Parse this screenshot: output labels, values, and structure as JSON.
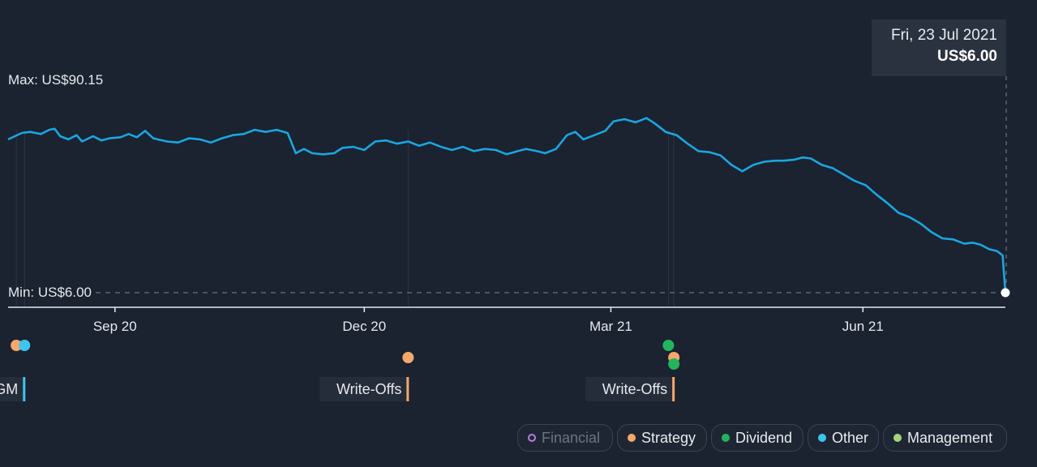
{
  "chart_data": {
    "type": "line",
    "currency": "US$",
    "max_label": "Max: US$90.15",
    "min_label": "Min: US$6.00",
    "y_max": 90.15,
    "y_min": 6.0,
    "x_start": "2020-07-24",
    "x_end": "2021-07-23",
    "x_ticks": [
      {
        "date": "2020-09-01",
        "label": "Sep 20"
      },
      {
        "date": "2020-12-01",
        "label": "Dec 20"
      },
      {
        "date": "2021-03-01",
        "label": "Mar 21"
      },
      {
        "date": "2021-06-01",
        "label": "Jun 21"
      }
    ],
    "series": [
      {
        "color": "#1aa6e0",
        "points": [
          [
            "2020-07-24",
            78.0
          ],
          [
            "2020-07-29",
            81.0
          ],
          [
            "2020-08-01",
            81.5
          ],
          [
            "2020-08-05",
            80.5
          ],
          [
            "2020-08-08",
            82.5
          ],
          [
            "2020-08-10",
            83.0
          ],
          [
            "2020-08-12",
            79.5
          ],
          [
            "2020-08-15",
            78.0
          ],
          [
            "2020-08-18",
            80.0
          ],
          [
            "2020-08-20",
            77.0
          ],
          [
            "2020-08-24",
            79.5
          ],
          [
            "2020-08-27",
            77.5
          ],
          [
            "2020-08-30",
            78.5
          ],
          [
            "2020-09-03",
            79.0
          ],
          [
            "2020-09-06",
            80.5
          ],
          [
            "2020-09-09",
            79.0
          ],
          [
            "2020-09-12",
            82.0
          ],
          [
            "2020-09-15",
            78.5
          ],
          [
            "2020-09-20",
            77.0
          ],
          [
            "2020-09-24",
            76.5
          ],
          [
            "2020-09-28",
            78.5
          ],
          [
            "2020-10-02",
            78.0
          ],
          [
            "2020-10-06",
            76.5
          ],
          [
            "2020-10-10",
            78.5
          ],
          [
            "2020-10-14",
            80.0
          ],
          [
            "2020-10-18",
            80.5
          ],
          [
            "2020-10-22",
            82.5
          ],
          [
            "2020-10-26",
            81.5
          ],
          [
            "2020-10-30",
            82.5
          ],
          [
            "2020-11-03",
            81.0
          ],
          [
            "2020-11-06",
            71.5
          ],
          [
            "2020-11-09",
            73.5
          ],
          [
            "2020-11-12",
            71.5
          ],
          [
            "2020-11-16",
            71.0
          ],
          [
            "2020-11-20",
            71.5
          ],
          [
            "2020-11-23",
            74.0
          ],
          [
            "2020-11-27",
            74.5
          ],
          [
            "2020-12-01",
            73.0
          ],
          [
            "2020-12-05",
            77.0
          ],
          [
            "2020-12-09",
            77.5
          ],
          [
            "2020-12-13",
            76.0
          ],
          [
            "2020-12-17",
            77.0
          ],
          [
            "2020-12-21",
            75.0
          ],
          [
            "2020-12-25",
            76.5
          ],
          [
            "2020-12-29",
            74.5
          ],
          [
            "2021-01-02",
            73.0
          ],
          [
            "2021-01-06",
            74.5
          ],
          [
            "2021-01-10",
            72.5
          ],
          [
            "2021-01-14",
            73.5
          ],
          [
            "2021-01-18",
            73.0
          ],
          [
            "2021-01-22",
            71.0
          ],
          [
            "2021-01-26",
            72.5
          ],
          [
            "2021-01-29",
            73.5
          ],
          [
            "2021-02-02",
            72.5
          ],
          [
            "2021-02-05",
            71.5
          ],
          [
            "2021-02-09",
            73.5
          ],
          [
            "2021-02-13",
            80.0
          ],
          [
            "2021-02-16",
            81.5
          ],
          [
            "2021-02-19",
            78.0
          ],
          [
            "2021-02-23",
            80.0
          ],
          [
            "2021-02-27",
            82.0
          ],
          [
            "2021-03-02",
            86.5
          ],
          [
            "2021-03-06",
            87.5
          ],
          [
            "2021-03-10",
            86.0
          ],
          [
            "2021-03-14",
            88.0
          ],
          [
            "2021-03-17",
            85.5
          ],
          [
            "2021-03-21",
            81.5
          ],
          [
            "2021-03-25",
            80.0
          ],
          [
            "2021-03-29",
            76.0
          ],
          [
            "2021-04-02",
            72.5
          ],
          [
            "2021-04-06",
            72.0
          ],
          [
            "2021-04-10",
            70.5
          ],
          [
            "2021-04-14",
            66.0
          ],
          [
            "2021-04-18",
            63.0
          ],
          [
            "2021-04-22",
            66.0
          ],
          [
            "2021-04-26",
            67.5
          ],
          [
            "2021-04-30",
            68.0
          ],
          [
            "2021-05-03",
            68.0
          ],
          [
            "2021-05-07",
            68.5
          ],
          [
            "2021-05-10",
            69.5
          ],
          [
            "2021-05-13",
            69.0
          ],
          [
            "2021-05-17",
            66.0
          ],
          [
            "2021-05-21",
            64.5
          ],
          [
            "2021-05-25",
            61.5
          ],
          [
            "2021-05-29",
            58.5
          ],
          [
            "2021-06-02",
            56.5
          ],
          [
            "2021-06-06",
            52.0
          ],
          [
            "2021-06-10",
            48.0
          ],
          [
            "2021-06-14",
            43.5
          ],
          [
            "2021-06-18",
            41.5
          ],
          [
            "2021-06-22",
            38.5
          ],
          [
            "2021-06-26",
            34.5
          ],
          [
            "2021-06-30",
            31.5
          ],
          [
            "2021-07-04",
            31.0
          ],
          [
            "2021-07-08",
            29.0
          ],
          [
            "2021-07-11",
            29.5
          ],
          [
            "2021-07-14",
            28.5
          ],
          [
            "2021-07-17",
            26.5
          ],
          [
            "2021-07-20",
            25.5
          ],
          [
            "2021-07-22",
            23.5
          ],
          [
            "2021-07-23",
            6.0
          ]
        ]
      }
    ],
    "current_point": {
      "date": "2021-07-23",
      "value": 6.0
    }
  },
  "tooltip": {
    "date": "Fri, 23 Jul 2021",
    "price": "US$6.00"
  },
  "events": [
    {
      "date": "2020-07-27",
      "category": "Strategy",
      "color": "#f5a86b",
      "row": 0
    },
    {
      "date": "2020-07-30",
      "category": "Other",
      "color": "#3cc6ef",
      "row": 0
    },
    {
      "date": "2020-12-17",
      "category": "Strategy",
      "color": "#f5a86b",
      "row": 1
    },
    {
      "date": "2021-03-22",
      "category": "Dividend",
      "color": "#22b55e",
      "row": 0
    },
    {
      "date": "2021-03-24",
      "category": "Strategy",
      "color": "#f5a86b",
      "row": 1
    },
    {
      "date": "2021-03-24",
      "category": "Dividend",
      "color": "#22b55e",
      "row": 2
    }
  ],
  "event_labels": [
    {
      "text": "AGM",
      "date": "2020-07-30",
      "color": "#3cc6ef",
      "clipped": true
    },
    {
      "text": "Write-Offs",
      "date": "2020-12-17",
      "color": "#f5a86b"
    },
    {
      "text": "Write-Offs",
      "date": "2021-03-24",
      "color": "#f5a86b"
    }
  ],
  "legend": [
    {
      "label": "Financial",
      "color": "#b57ee0",
      "hollow": true,
      "enabled": false
    },
    {
      "label": "Strategy",
      "color": "#f5a86b",
      "enabled": true
    },
    {
      "label": "Dividend",
      "color": "#22b55e",
      "enabled": true
    },
    {
      "label": "Other",
      "color": "#3cc6ef",
      "enabled": true
    },
    {
      "label": "Management",
      "color": "#a6d57f",
      "enabled": true
    }
  ]
}
